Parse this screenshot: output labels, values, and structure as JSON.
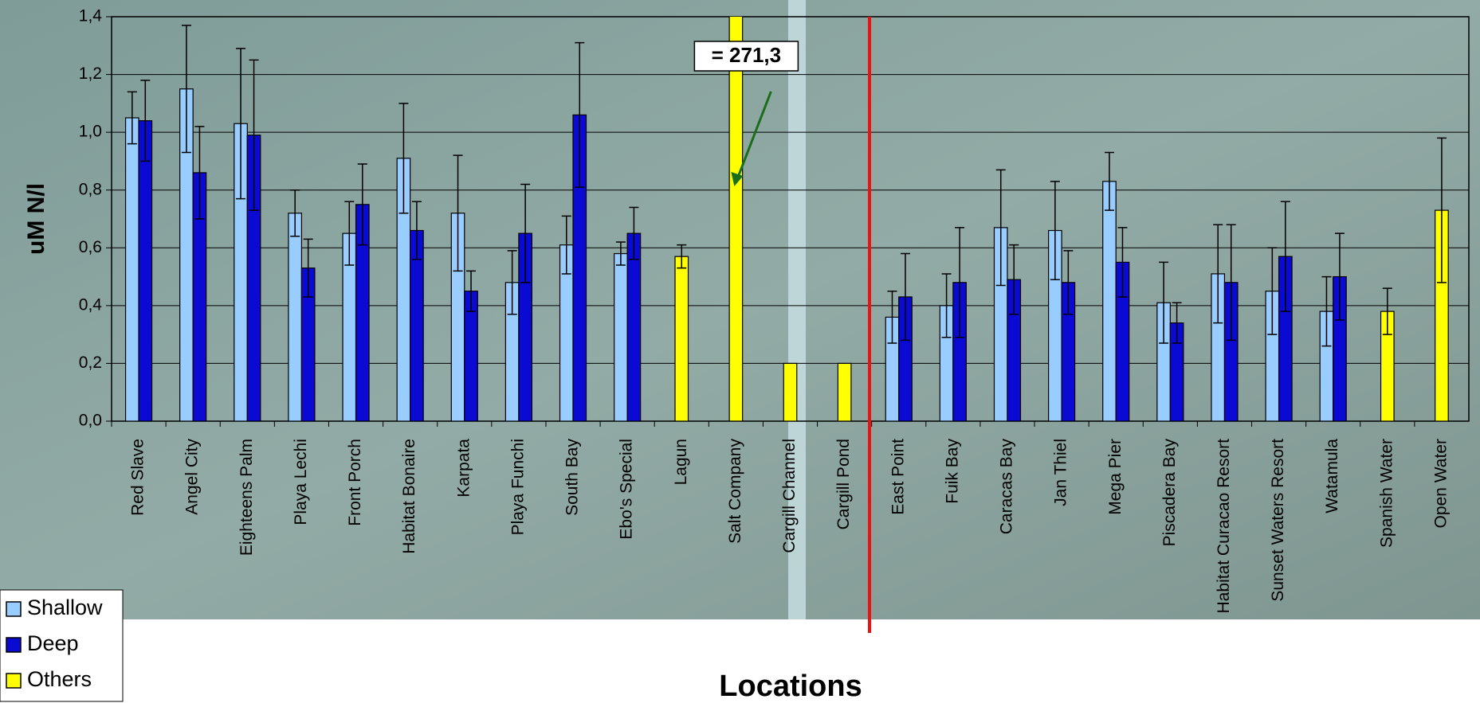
{
  "chart_data": {
    "type": "bar",
    "y_label": "uM N/l",
    "x_label": "Locations",
    "categories": [
      "Red Slave",
      "Angel City",
      "Eighteens Palm",
      "Playa Lechi",
      "Front Porch",
      "Habitat Bonaire",
      "Karpata",
      "Playa Funchi",
      "South Bay",
      "Ebo's Special",
      "Lagun",
      "Salt Company",
      "Cargill Channel",
      "Cargill Pond",
      "East Point",
      "Fuik Bay",
      "Caracas Bay",
      "Jan Thiel",
      "Mega Pier",
      "Piscadera Bay",
      "Habitat Curacao Resort",
      "Sunset Waters Resort",
      "Watamula",
      "Spanish Water",
      "Open Water"
    ],
    "series": [
      {
        "name": "Shallow",
        "color": "#99ccff",
        "values": [
          1.05,
          1.15,
          1.03,
          0.72,
          0.65,
          0.91,
          0.72,
          0.48,
          0.61,
          0.58,
          null,
          null,
          null,
          null,
          0.36,
          0.4,
          0.67,
          0.66,
          0.83,
          0.41,
          0.51,
          0.45,
          0.38,
          null,
          null
        ],
        "errors": [
          0.09,
          0.22,
          0.26,
          0.08,
          0.11,
          0.19,
          0.2,
          0.11,
          0.1,
          0.04,
          null,
          null,
          null,
          null,
          0.09,
          0.11,
          0.2,
          0.17,
          0.1,
          0.14,
          0.17,
          0.15,
          0.12,
          null,
          null
        ]
      },
      {
        "name": "Deep",
        "color": "#0a0ad2",
        "values": [
          1.04,
          0.86,
          0.99,
          0.53,
          0.75,
          0.66,
          0.45,
          0.65,
          1.06,
          0.65,
          null,
          null,
          null,
          null,
          0.43,
          0.48,
          0.49,
          0.48,
          0.55,
          0.34,
          0.48,
          0.57,
          0.5,
          null,
          null
        ],
        "errors": [
          0.14,
          0.16,
          0.26,
          0.1,
          0.14,
          0.1,
          0.07,
          0.17,
          0.25,
          0.09,
          null,
          null,
          null,
          null,
          0.15,
          0.19,
          0.12,
          0.11,
          0.12,
          0.07,
          0.2,
          0.19,
          0.15,
          null,
          null
        ]
      },
      {
        "name": "Others",
        "color": "#ffff00",
        "values": [
          null,
          null,
          null,
          null,
          null,
          null,
          null,
          null,
          null,
          null,
          0.57,
          271.3,
          0.2,
          0.2,
          null,
          null,
          null,
          null,
          null,
          null,
          null,
          null,
          null,
          0.38,
          0.73
        ],
        "errors": [
          null,
          null,
          null,
          null,
          null,
          null,
          null,
          null,
          null,
          null,
          0.04,
          null,
          null,
          null,
          null,
          null,
          null,
          null,
          null,
          null,
          null,
          null,
          null,
          0.08,
          0.25
        ],
        "value_labels": [
          null,
          null,
          null,
          null,
          null,
          null,
          null,
          null,
          null,
          null,
          null,
          "= 271,3",
          null,
          null,
          null,
          null,
          null,
          null,
          null,
          null,
          null,
          null,
          null,
          null,
          null
        ]
      }
    ],
    "ylim": [
      0,
      1.4
    ],
    "yticks": [
      {
        "value": 0,
        "label": "0,0"
      },
      {
        "value": 0.2,
        "label": "0,2"
      },
      {
        "value": 0.4,
        "label": "0,4"
      },
      {
        "value": 0.6,
        "label": "0,6"
      },
      {
        "value": 0.8,
        "label": "0,8"
      },
      {
        "value": 1.0,
        "label": "1,0"
      },
      {
        "value": 1.2,
        "label": "1,2"
      },
      {
        "value": 1.4,
        "label": "1,4"
      }
    ],
    "grid": true
  }
}
